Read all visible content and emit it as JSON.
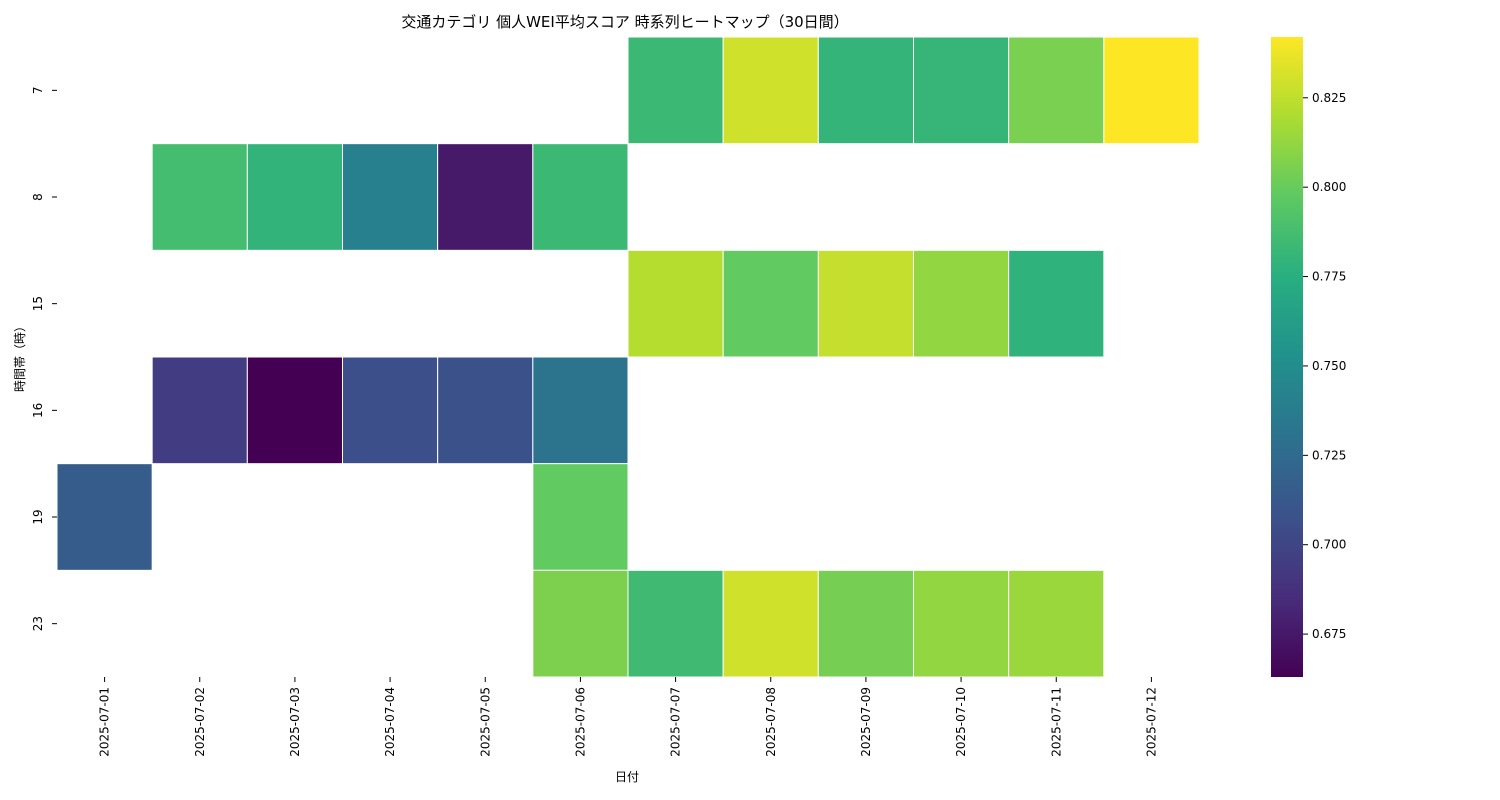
{
  "chart_data": {
    "type": "heatmap",
    "title": "交通カテゴリ 個人WEI平均スコア 時系列ヒートマップ（30日間）",
    "xlabel": "日付",
    "ylabel": "時間帯（時）",
    "x": [
      "2025-07-01",
      "2025-07-02",
      "2025-07-03",
      "2025-07-04",
      "2025-07-05",
      "2025-07-06",
      "2025-07-07",
      "2025-07-08",
      "2025-07-09",
      "2025-07-10",
      "2025-07-11",
      "2025-07-12"
    ],
    "y": [
      "7",
      "8",
      "15",
      "16",
      "19",
      "23"
    ],
    "values": [
      [
        null,
        null,
        null,
        null,
        null,
        null,
        0.783,
        0.829,
        0.78,
        0.781,
        0.805,
        0.842
      ],
      [
        null,
        0.787,
        0.779,
        0.74,
        0.675,
        0.783,
        null,
        null,
        null,
        null,
        null,
        null
      ],
      [
        null,
        null,
        null,
        null,
        null,
        null,
        0.822,
        0.798,
        0.826,
        0.812,
        0.778,
        null
      ],
      [
        null,
        0.695,
        0.663,
        0.706,
        0.707,
        0.731,
        null,
        null,
        null,
        null,
        null,
        null
      ],
      [
        0.715,
        null,
        null,
        null,
        null,
        0.798,
        null,
        null,
        null,
        null,
        null,
        null
      ],
      [
        null,
        null,
        null,
        null,
        null,
        0.806,
        0.785,
        0.829,
        0.804,
        0.812,
        0.814,
        null
      ]
    ],
    "colormap": "viridis",
    "vmin": 0.663,
    "vmax": 0.842,
    "colorbar_ticks": [
      "0.675",
      "0.700",
      "0.725",
      "0.750",
      "0.775",
      "0.800",
      "0.825"
    ]
  }
}
